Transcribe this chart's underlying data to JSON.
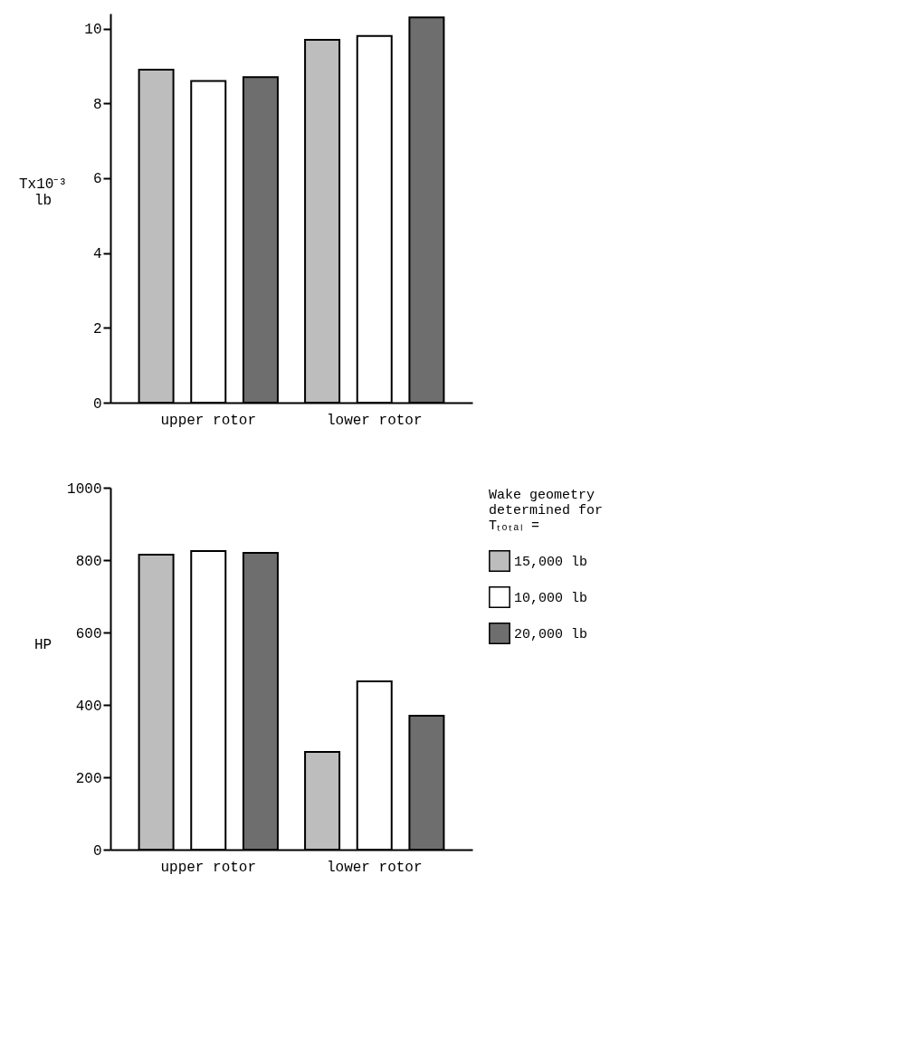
{
  "chart_data": [
    {
      "type": "bar",
      "categories": [
        "upper rotor",
        "lower rotor"
      ],
      "ylabel": "Tx10⁻³ lb",
      "ylim": [
        0,
        10.4
      ],
      "yticks": [
        0,
        2,
        4,
        6,
        8,
        10
      ],
      "grid": false,
      "legend": false,
      "series": [
        {
          "color": "#bdbdbd",
          "values": [
            8.9,
            9.7
          ]
        },
        {
          "color": "#ffffff",
          "values": [
            8.6,
            9.8
          ]
        },
        {
          "color": "#6e6e6e",
          "values": [
            8.7,
            10.3
          ]
        }
      ]
    },
    {
      "type": "bar",
      "categories": [
        "upper rotor",
        "lower rotor"
      ],
      "ylabel": "HP",
      "ylim": [
        0,
        1000
      ],
      "yticks": [
        0,
        200,
        400,
        600,
        800,
        1000
      ],
      "grid": false,
      "legend": "right",
      "legend_title": "Wake geometry determined for Tₜₒₜₐₗ =",
      "series": [
        {
          "name": "15,000 lb",
          "color": "#bdbdbd",
          "values": [
            815,
            270
          ]
        },
        {
          "name": "10,000 lb",
          "color": "#ffffff",
          "values": [
            825,
            465
          ]
        },
        {
          "name": "20,000 lb",
          "color": "#6e6e6e",
          "values": [
            820,
            370
          ]
        }
      ]
    }
  ]
}
